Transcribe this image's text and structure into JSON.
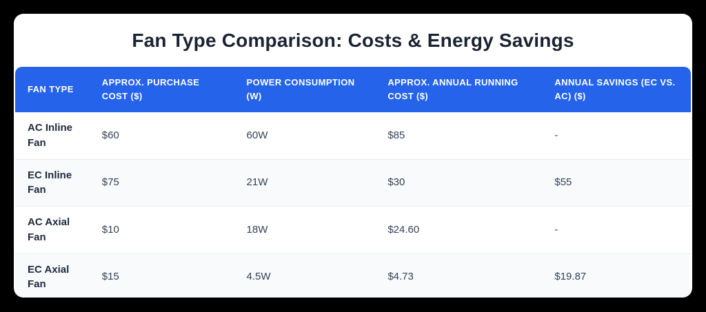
{
  "page": {
    "background_color": "#000000",
    "card_color": "#ffffff",
    "accent_color": "#2563eb",
    "stripe_color": "#f8fafc"
  },
  "title": "Fan Type Comparison: Costs & Energy Savings",
  "table": {
    "columns": [
      "FAN TYPE",
      "APPROX. PURCHASE COST ($)",
      "POWER CONSUMPTION (W)",
      "APPROX. ANNUAL RUNNING COST ($)",
      "ANNUAL SAVINGS (EC VS. AC) ($)"
    ],
    "rows": [
      {
        "fan_type": "AC Inline Fan",
        "purchase_cost": "$60",
        "power": "60W",
        "running_cost": "$85",
        "savings": "-"
      },
      {
        "fan_type": "EC Inline Fan",
        "purchase_cost": "$75",
        "power": "21W",
        "running_cost": "$30",
        "savings": "$55"
      },
      {
        "fan_type": "AC Axial Fan",
        "purchase_cost": "$10",
        "power": "18W",
        "running_cost": "$24.60",
        "savings": "-"
      },
      {
        "fan_type": "EC Axial Fan",
        "purchase_cost": "$15",
        "power": "4.5W",
        "running_cost": "$4.73",
        "savings": "$19.87"
      }
    ]
  },
  "chart_data": {
    "type": "table",
    "title": "Fan Type Comparison: Costs & Energy Savings",
    "columns": [
      "Fan Type",
      "Approx. Purchase Cost ($)",
      "Power Consumption (W)",
      "Approx. Annual Running Cost ($)",
      "Annual Savings (EC vs. AC) ($)"
    ],
    "categories": [
      "AC Inline Fan",
      "EC Inline Fan",
      "AC Axial Fan",
      "EC Axial Fan"
    ],
    "series": [
      {
        "name": "Approx. Purchase Cost ($)",
        "values": [
          60,
          75,
          10,
          15
        ]
      },
      {
        "name": "Power Consumption (W)",
        "values": [
          60,
          21,
          18,
          4.5
        ]
      },
      {
        "name": "Approx. Annual Running Cost ($)",
        "values": [
          85,
          30,
          24.6,
          4.73
        ]
      },
      {
        "name": "Annual Savings (EC vs. AC) ($)",
        "values": [
          null,
          55,
          null,
          19.87
        ]
      }
    ]
  }
}
